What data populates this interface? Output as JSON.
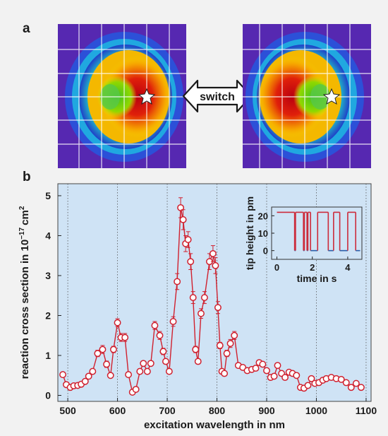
{
  "panel_a": {
    "letter": "a",
    "switch_label": "switch"
  },
  "panel_b": {
    "letter": "b"
  },
  "chart_data": [
    {
      "type": "scatter",
      "title": "",
      "xlabel": "excitation wavelength in nm",
      "ylabel": "reaction cross section in 10",
      "ylabel_exponent": "−17",
      "ylabel_unit": "cm",
      "ylabel_unit_exponent": "2",
      "xlim": [
        480,
        1110
      ],
      "ylim": [
        -0.15,
        5.3
      ],
      "xticks": [
        500,
        600,
        700,
        800,
        900,
        1000,
        1100
      ],
      "yticks": [
        0,
        1,
        2,
        3,
        4,
        5
      ],
      "grid": "vertical dotted",
      "legend": "none",
      "background_color": "#cfe3f5",
      "series_color": "#d0202e",
      "series": [
        {
          "x": [
            490,
            497,
            505,
            512,
            520,
            527,
            535,
            542,
            550,
            560,
            570,
            578,
            586,
            592,
            600,
            607,
            615,
            622,
            630,
            637,
            645,
            652,
            660,
            667,
            675,
            685,
            692,
            697,
            704,
            712,
            720,
            727,
            732,
            737,
            742,
            747,
            752,
            757,
            762,
            768,
            775,
            785,
            792,
            797,
            802,
            806,
            810,
            815,
            820,
            827,
            835,
            843,
            852,
            861,
            870,
            878,
            885,
            892,
            900,
            908,
            915,
            922,
            930,
            937,
            945,
            952,
            960,
            968,
            975,
            983,
            990,
            997,
            1005,
            1013,
            1020,
            1030,
            1040,
            1050,
            1060,
            1070,
            1080,
            1090
          ],
          "y": [
            0.52,
            0.27,
            0.2,
            0.24,
            0.25,
            0.28,
            0.35,
            0.48,
            0.6,
            1.05,
            1.15,
            0.78,
            0.5,
            1.15,
            1.82,
            1.45,
            1.45,
            0.52,
            0.08,
            0.15,
            0.6,
            0.8,
            0.6,
            0.8,
            1.75,
            1.5,
            1.1,
            0.85,
            0.6,
            1.85,
            2.85,
            4.7,
            4.4,
            3.8,
            3.9,
            3.35,
            2.45,
            1.15,
            0.85,
            2.05,
            2.45,
            3.35,
            3.55,
            3.25,
            2.2,
            1.25,
            0.6,
            0.55,
            1.05,
            1.3,
            1.5,
            0.75,
            0.7,
            0.62,
            0.65,
            0.68,
            0.82,
            0.78,
            0.62,
            0.45,
            0.48,
            0.75,
            0.55,
            0.45,
            0.58,
            0.55,
            0.5,
            0.2,
            0.18,
            0.25,
            0.42,
            0.3,
            0.32,
            0.38,
            0.42,
            0.45,
            0.42,
            0.4,
            0.32,
            0.2,
            0.3,
            0.2
          ],
          "error": [
            0.05,
            0.04,
            0.04,
            0.04,
            0.04,
            0.04,
            0.05,
            0.05,
            0.06,
            0.08,
            0.1,
            0.08,
            0.06,
            0.08,
            0.1,
            0.1,
            0.1,
            0.06,
            0.04,
            0.04,
            0.06,
            0.06,
            0.06,
            0.06,
            0.1,
            0.1,
            0.08,
            0.06,
            0.06,
            0.12,
            0.2,
            0.25,
            0.25,
            0.2,
            0.2,
            0.2,
            0.15,
            0.08,
            0.06,
            0.12,
            0.15,
            0.2,
            0.2,
            0.2,
            0.15,
            0.08,
            0.06,
            0.06,
            0.08,
            0.1,
            0.1,
            0.06,
            0.06,
            0.06,
            0.06,
            0.06,
            0.06,
            0.06,
            0.05,
            0.05,
            0.05,
            0.06,
            0.05,
            0.05,
            0.05,
            0.05,
            0.05,
            0.04,
            0.04,
            0.04,
            0.04,
            0.04,
            0.04,
            0.04,
            0.04,
            0.04,
            0.04,
            0.04,
            0.04,
            0.04,
            0.04,
            0.04
          ]
        }
      ]
    },
    {
      "type": "line",
      "title": "",
      "xlabel": "time in s",
      "ylabel": "tip height in pm",
      "xlim": [
        -0.3,
        4.8
      ],
      "ylim": [
        -5,
        25
      ],
      "xticks": [
        0,
        2,
        4
      ],
      "yticks": [
        0,
        10,
        20
      ],
      "high_color": "#cc2a3a",
      "low_color": "#2b5fa8",
      "background_color": "#cfe3f5",
      "series": [
        {
          "x": [
            0.0,
            1.0,
            1.0,
            1.05,
            1.05,
            1.5,
            1.5,
            1.55,
            1.55,
            1.7,
            1.7,
            1.75,
            1.75,
            1.9,
            1.9,
            2.3,
            2.3,
            2.9,
            2.9,
            3.2,
            3.2,
            3.55,
            3.55,
            4.0,
            4.0,
            4.45,
            4.45,
            4.7
          ],
          "y": [
            22,
            22,
            0,
            0,
            22,
            22,
            0,
            0,
            22,
            22,
            0,
            0,
            22,
            22,
            0,
            0,
            22,
            22,
            0,
            0,
            22,
            22,
            0,
            0,
            22,
            22,
            0,
            0
          ]
        }
      ]
    }
  ]
}
